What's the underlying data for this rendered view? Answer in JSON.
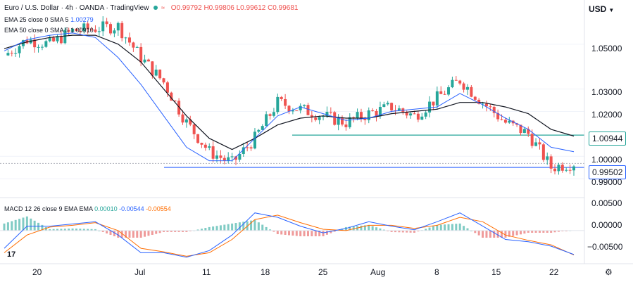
{
  "header": {
    "title": "Euro / U.S. Dollar · 4h · OANDA · TradingView",
    "ohlc": "O0.99792 H0.99806 L0.99612 C0.99681"
  },
  "legends": {
    "ema25_label": "EMA 25 close 0 SMA 5",
    "ema25_value": "1.00279",
    "ema50_label": "EMA 50 close 0 SMA 5",
    "ema50_value": "1.00910",
    "macd_label": "MACD 12 26 close 9 EMA EMA",
    "macd_hist": "0.00010",
    "macd_line": "-0.00544",
    "macd_signal": "-0.00554"
  },
  "currency": "USD",
  "tv_logo": "17",
  "colors": {
    "up": "#26a69a",
    "down": "#ef5350",
    "ema25": "#2962ff",
    "ema50": "#131722",
    "macd_line": "#2962ff",
    "signal_line": "#ff6d00",
    "hline_teal": "#26a69a",
    "hline_blue": "#2962ff"
  },
  "chart_data": [
    {
      "type": "candlestick",
      "x_ticks": [
        "20",
        "Jul",
        "11",
        "18",
        "25",
        "Aug",
        "8",
        "15",
        "22"
      ],
      "y_ticks": [
        "1.05000",
        "1.03000",
        "1.02000",
        "1.00000",
        "0.99000"
      ],
      "ylim": [
        0.985,
        1.065
      ],
      "price_labels": {
        "resistance": "1.00944",
        "current": "0.99502"
      },
      "horizontal_lines": [
        1.00944,
        0.99502
      ],
      "series": [
        {
          "name": "EMA 25",
          "values": [
            1.047,
            1.052,
            1.054,
            1.055,
            1.053,
            1.044,
            1.032,
            1.018,
            1.004,
            0.998,
            0.998,
            1.008,
            1.018,
            1.022,
            1.019,
            1.016,
            1.017,
            1.02,
            1.021,
            1.022,
            1.028,
            1.023,
            1.017,
            1.012,
            1.004,
            1.002
          ]
        },
        {
          "name": "EMA 50",
          "values": [
            1.048,
            1.051,
            1.053,
            1.054,
            1.054,
            1.05,
            1.042,
            1.03,
            1.018,
            1.008,
            1.003,
            1.008,
            1.014,
            1.017,
            1.018,
            1.017,
            1.017,
            1.019,
            1.02,
            1.021,
            1.024,
            1.024,
            1.022,
            1.019,
            1.012,
            1.009
          ]
        }
      ],
      "close": [
        1.045,
        1.052,
        1.05,
        1.056,
        1.057,
        1.058,
        1.044,
        1.033,
        1.015,
        1.002,
        0.997,
        1.008,
        1.024,
        1.021,
        1.018,
        1.015,
        1.019,
        1.022,
        1.018,
        1.026,
        1.034,
        1.024,
        1.015,
        1.01,
        0.995,
        0.997
      ]
    },
    {
      "type": "macd",
      "y_ticks": [
        "0.00500",
        "0.00000",
        "−0.00500"
      ],
      "ylim": [
        -0.007,
        0.0065
      ],
      "series": [
        {
          "name": "MACD",
          "values": [
            -0.004,
            0.001,
            0.001,
            0.0015,
            0.002,
            -0.001,
            -0.005,
            -0.005,
            -0.006,
            -0.0045,
            -0.001,
            0.004,
            0.003,
            0.001,
            -0.0005,
            0.0005,
            0.002,
            0.001,
            0.0002,
            0.002,
            0.004,
            0.001,
            -0.002,
            -0.0025,
            -0.0035,
            -0.0054
          ]
        },
        {
          "name": "Signal",
          "values": [
            -0.005,
            -0.001,
            0.0008,
            0.0012,
            0.0018,
            0.0,
            -0.004,
            -0.0048,
            -0.0058,
            -0.005,
            -0.002,
            0.0025,
            0.0035,
            0.0018,
            0.0003,
            0.0,
            0.0012,
            0.0012,
            0.0005,
            0.0012,
            0.003,
            0.002,
            -0.001,
            -0.0022,
            -0.0032,
            -0.0055
          ]
        }
      ]
    }
  ]
}
